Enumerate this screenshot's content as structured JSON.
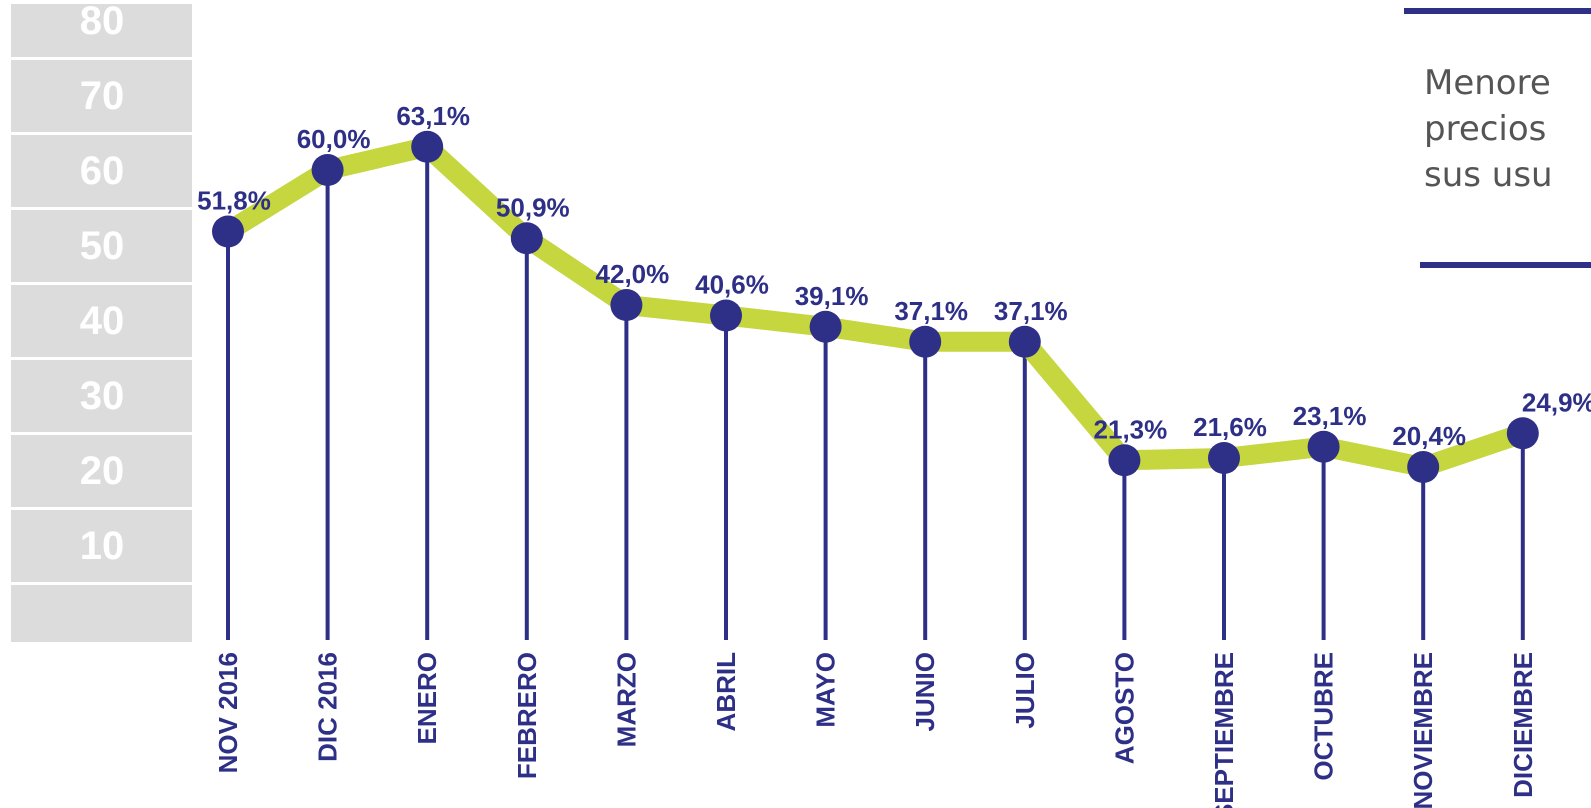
{
  "chart_data": {
    "type": "line",
    "categories": [
      "NOV 2016",
      "DIC 2016",
      "ENERO",
      "FEBRERO",
      "MARZO",
      "ABRIL",
      "MAYO",
      "JUNIO",
      "JULIO",
      "AGOSTO",
      "SEPTIEMBRE",
      "OCTUBRE",
      "NOVIEMBRE",
      "DICIEMBRE"
    ],
    "values": [
      51.8,
      60.0,
      63.1,
      50.9,
      42.0,
      40.6,
      39.1,
      37.1,
      37.1,
      21.3,
      21.6,
      23.1,
      20.4,
      24.9
    ],
    "data_labels": [
      "51,8%",
      "60,0%",
      "63,1%",
      "50,9%",
      "42,0%",
      "40,6%",
      "39,1%",
      "37,1%",
      "37,1%",
      "21,3%",
      "21,6%",
      "23,1%",
      "20,4%",
      "24,9%"
    ],
    "yticks": [
      "80",
      "70",
      "60",
      "50",
      "40",
      "30",
      "20",
      "10"
    ],
    "ylim": [
      0,
      80
    ],
    "colors": {
      "line": "#c5d63f",
      "marker": "#2e2f86",
      "stem": "#2e2f86",
      "label": "#2e2f86",
      "axis_bar": "#dcdcdc"
    }
  },
  "note": {
    "lines": [
      "Menore",
      "precios",
      "sus usu"
    ]
  }
}
